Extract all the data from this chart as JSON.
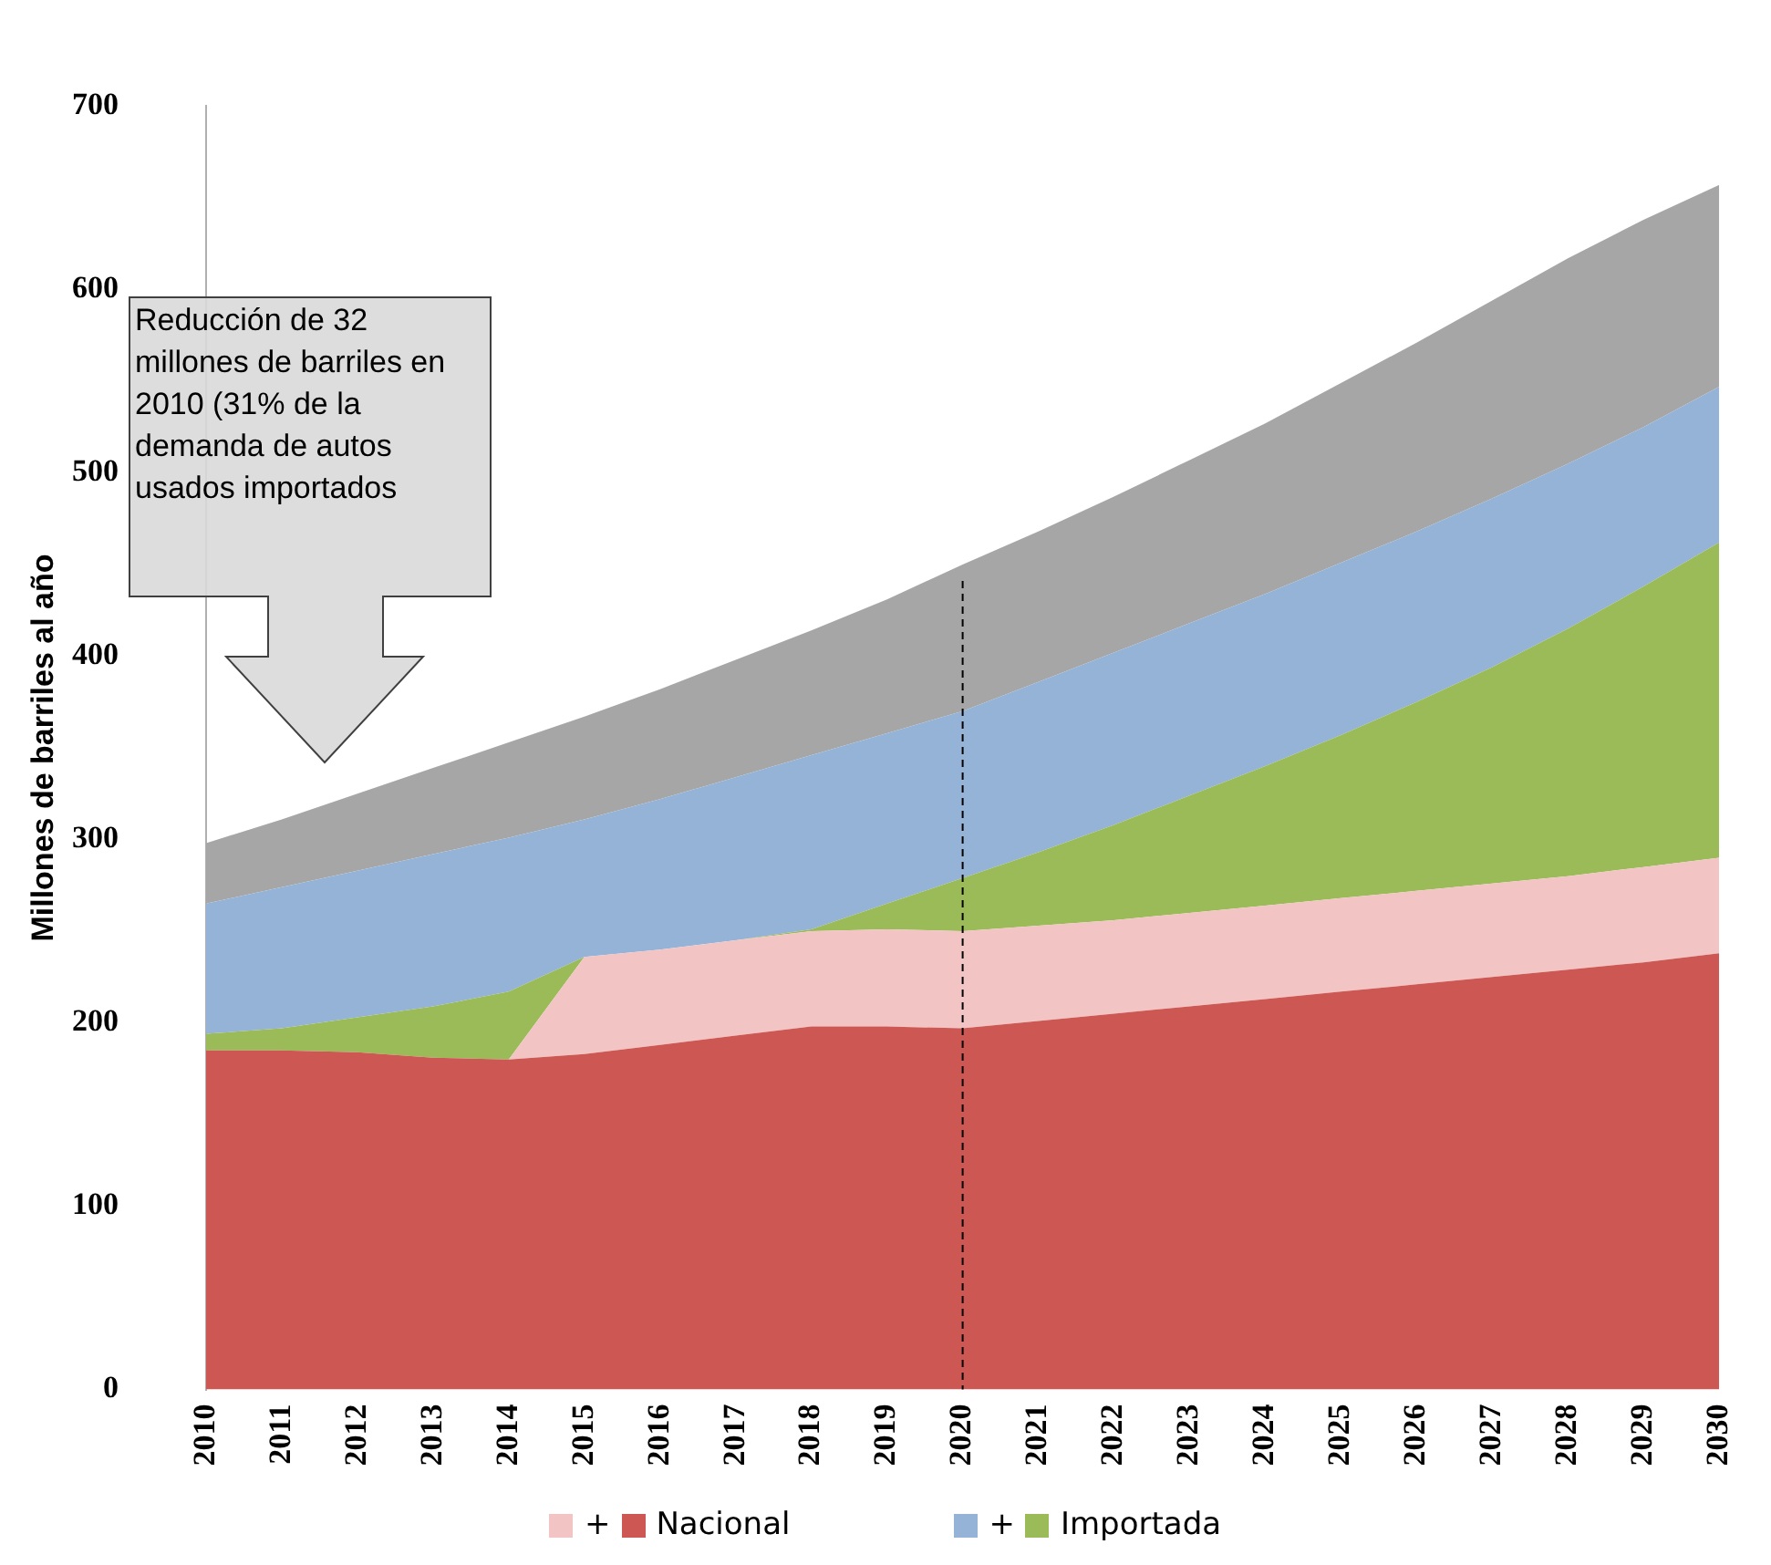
{
  "chart_data": {
    "type": "area",
    "stacked": true,
    "ylabel": "Millones de barriles al año",
    "categories": [
      "2010",
      "2011",
      "2012",
      "2013",
      "2014",
      "2015",
      "2016",
      "2017",
      "2018",
      "2019",
      "2020",
      "2021",
      "2022",
      "2023",
      "2024",
      "2025",
      "2026",
      "2027",
      "2028",
      "2029",
      "2030"
    ],
    "ylim": [
      0,
      700
    ],
    "yticks": [
      0,
      100,
      200,
      300,
      400,
      500,
      600,
      700
    ],
    "legend": "bottom",
    "series": [
      {
        "name": "Nacional",
        "color": "#cd5752",
        "values": [
          185,
          185,
          184,
          181,
          180,
          183,
          188,
          193,
          198,
          198,
          197,
          201,
          205,
          209,
          213,
          217,
          221,
          225,
          229,
          233,
          238
        ]
      },
      {
        "name": "+",
        "color": "#f2c4c4",
        "values": [
          0,
          0,
          0,
          0,
          0,
          53,
          52,
          52,
          52,
          53,
          53,
          52,
          51,
          51,
          51,
          51,
          51,
          51,
          51,
          52,
          52
        ]
      },
      {
        "name": "Importada",
        "color": "#9bbb59",
        "values": [
          9,
          12,
          19,
          28,
          37,
          0,
          0,
          0,
          1,
          14,
          29,
          40,
          52,
          64,
          76,
          89,
          103,
          118,
          135,
          153,
          172
        ]
      },
      {
        "name": "+",
        "color": "#95b3d7",
        "values": [
          71,
          77,
          80,
          83,
          84,
          75,
          82,
          89,
          95,
          93,
          91,
          93,
          94,
          94,
          94,
          94,
          93,
          92,
          90,
          87,
          85
        ]
      },
      {
        "color": "#a6a6a6",
        "values": [
          33,
          37,
          42,
          47,
          52,
          56,
          60,
          64,
          68,
          73,
          80,
          82,
          85,
          89,
          93,
          98,
          103,
          108,
          112,
          113,
          110
        ]
      }
    ],
    "ref_lines": [
      {
        "axis": "x",
        "value": "2020",
        "color": "#000000",
        "line_style": "dashed"
      }
    ],
    "annotations": [
      "Reducción de 32 millones de barriles en 2010 (31% de la demanda de autos usados importados"
    ]
  }
}
